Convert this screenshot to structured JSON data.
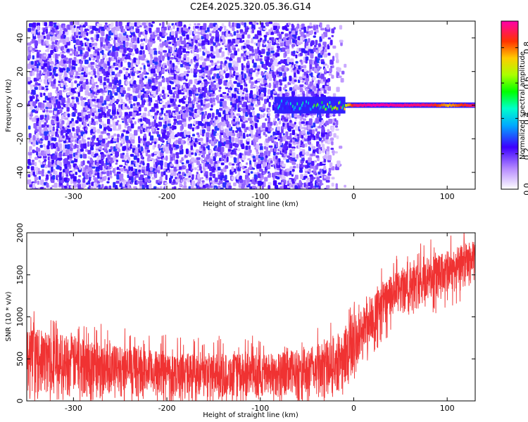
{
  "title": "C2E4.2025.320.05.36.G14",
  "chart_data": [
    {
      "type": "heatmap",
      "name": "spectrogram",
      "xlabel": "Height of straight line (km)",
      "ylabel": "Frequency (Hz)",
      "xlim": [
        -350,
        130
      ],
      "ylim": [
        -50,
        50
      ],
      "xticks": [
        -300,
        -200,
        -100,
        0,
        100
      ],
      "yticks": [
        -40,
        -20,
        0,
        20,
        40
      ],
      "noise_region_km": [
        -350,
        -25
      ],
      "fade_region_km": [
        -40,
        -25
      ],
      "carrier_start_km": -85,
      "carrier_frequency_hz": 0,
      "carrier_amplitude": [
        {
          "x": -85,
          "a": 0.3
        },
        {
          "x": -60,
          "a": 0.4
        },
        {
          "x": -30,
          "a": 0.5
        },
        {
          "x": -10,
          "a": 0.65
        },
        {
          "x": 0,
          "a": 0.9
        },
        {
          "x": 20,
          "a": 0.95
        },
        {
          "x": 80,
          "a": 0.9
        },
        {
          "x": 100,
          "a": 0.75
        },
        {
          "x": 130,
          "a": 0.92
        }
      ],
      "colorbar": {
        "label": "Normalized spectral amplitude",
        "range": [
          0,
          0.95
        ],
        "ticks": [
          0.0,
          0.2,
          0.4,
          0.6,
          0.8
        ],
        "tick_labels": [
          "0.0",
          "0.2",
          "0.4",
          "0.6",
          "0.8"
        ]
      }
    },
    {
      "type": "line",
      "name": "snr",
      "color": "#f03232",
      "xlabel": "Height of straight line (km)",
      "ylabel": "SNR (10 * v/v)",
      "xlim": [
        -350,
        130
      ],
      "ylim": [
        0,
        2000
      ],
      "xticks": [
        -300,
        -200,
        -100,
        0,
        100
      ],
      "yticks": [
        0,
        500,
        1000,
        1500,
        2000
      ],
      "envelope": [
        {
          "x": -350,
          "lo": 80,
          "hi": 870
        },
        {
          "x": -300,
          "lo": 60,
          "hi": 780
        },
        {
          "x": -250,
          "lo": 50,
          "hi": 650
        },
        {
          "x": -200,
          "lo": 40,
          "hi": 580
        },
        {
          "x": -150,
          "lo": 30,
          "hi": 560
        },
        {
          "x": -100,
          "lo": 30,
          "hi": 560
        },
        {
          "x": -50,
          "lo": 20,
          "hi": 620
        },
        {
          "x": -20,
          "lo": 50,
          "hi": 760
        },
        {
          "x": 0,
          "lo": 250,
          "hi": 1020
        },
        {
          "x": 20,
          "lo": 700,
          "hi": 1250
        },
        {
          "x": 40,
          "lo": 950,
          "hi": 1500
        },
        {
          "x": 60,
          "lo": 1050,
          "hi": 1600
        },
        {
          "x": 80,
          "lo": 1150,
          "hi": 1700
        },
        {
          "x": 100,
          "lo": 1250,
          "hi": 1780
        },
        {
          "x": 120,
          "lo": 1350,
          "hi": 1880
        },
        {
          "x": 130,
          "lo": 1400,
          "hi": 1900
        }
      ]
    }
  ]
}
